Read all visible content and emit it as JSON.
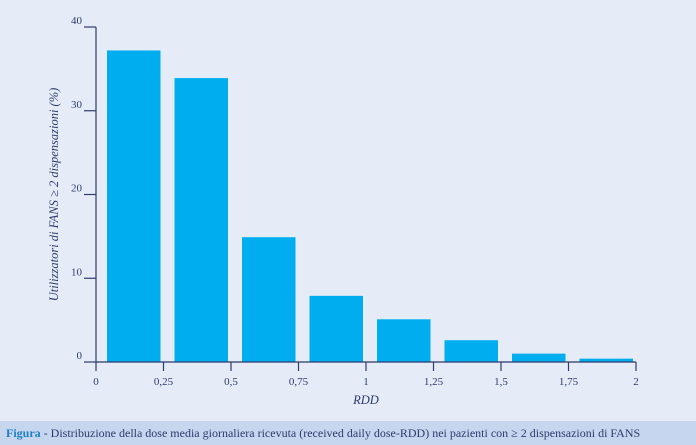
{
  "caption": {
    "prefix": "Figura",
    "text": " - Distribuzione della dose media giornaliera ricevuta (received daily dose-RDD) nei pazienti con ≥ 2 dispensazioni di FANS"
  },
  "colors": {
    "bar": "#00aeef",
    "axis": "#2e3a6e",
    "background": "#e6ecf7",
    "caption_band": "#c5d6ee",
    "caption_prefix": "#1f7fc4"
  },
  "chart_data": {
    "type": "bar",
    "xlabel": "RDD",
    "ylabel": "Utilizzatori di FANS ≥ 2 dispensazioni (%)",
    "bins": [
      {
        "from": 0,
        "to": 0.25
      },
      {
        "from": 0.25,
        "to": 0.5
      },
      {
        "from": 0.5,
        "to": 0.75
      },
      {
        "from": 0.75,
        "to": 1.0
      },
      {
        "from": 1.0,
        "to": 1.25
      },
      {
        "from": 1.25,
        "to": 1.5
      },
      {
        "from": 1.5,
        "to": 1.75
      },
      {
        "from": 1.75,
        "to": 2.0
      }
    ],
    "values": [
      37.2,
      33.9,
      14.9,
      7.9,
      5.1,
      2.6,
      1.0,
      0.4
    ],
    "xlim": [
      0,
      2
    ],
    "ylim": [
      0,
      40
    ],
    "x_ticks": [
      {
        "value": 0,
        "label": "0"
      },
      {
        "value": 0.25,
        "label": "0,25"
      },
      {
        "value": 0.5,
        "label": "0,5"
      },
      {
        "value": 0.75,
        "label": "0,75"
      },
      {
        "value": 1,
        "label": "1"
      },
      {
        "value": 1.25,
        "label": "1,25"
      },
      {
        "value": 1.5,
        "label": "1,5"
      },
      {
        "value": 1.75,
        "label": "1,75"
      },
      {
        "value": 2,
        "label": "2"
      }
    ],
    "y_ticks": [
      {
        "value": 0,
        "label": "0"
      },
      {
        "value": 10,
        "label": "10"
      },
      {
        "value": 20,
        "label": "20"
      },
      {
        "value": 30,
        "label": "30"
      },
      {
        "value": 40,
        "label": "40"
      }
    ],
    "grid": false,
    "legend": "none"
  }
}
